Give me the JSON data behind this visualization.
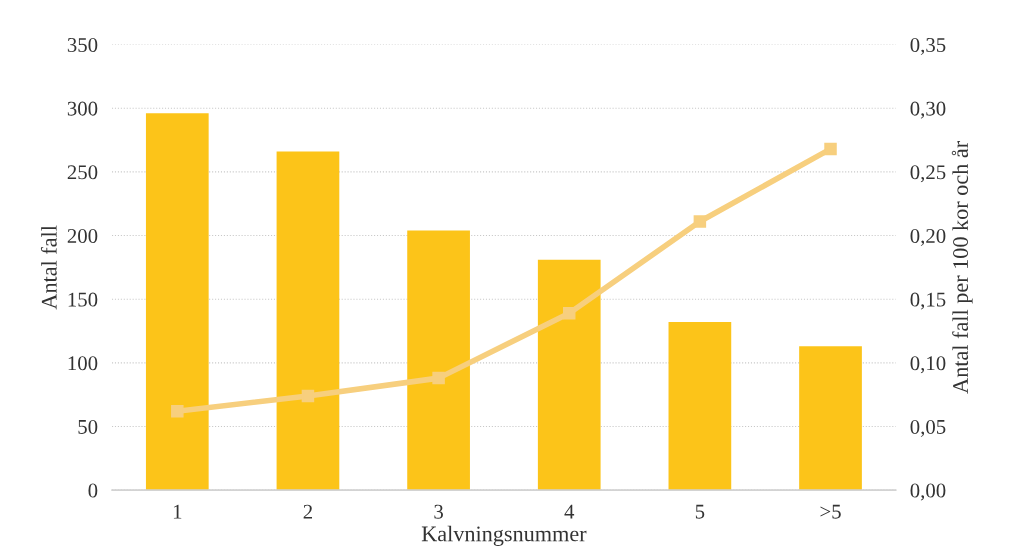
{
  "chart_data": {
    "type": "bar",
    "xlabel": "Kalvningsnummer",
    "ylabel": "Antal fall",
    "y2label": "Antal fall per 100 kor och år",
    "categories": [
      "1",
      "2",
      "3",
      "4",
      "5",
      ">5"
    ],
    "series": [
      {
        "color": "#fcc419",
        "values": [
          296,
          266,
          204,
          181,
          132,
          113
        ]
      },
      {
        "type": "line",
        "axis": "y2",
        "color": "#f7cf7e",
        "marker": "square",
        "values": [
          0.062,
          0.074,
          0.088,
          0.139,
          0.211,
          0.268
        ]
      }
    ],
    "ylim": [
      0,
      350
    ],
    "yticks": [
      0,
      50,
      100,
      150,
      200,
      250,
      300,
      350
    ],
    "y2lim": [
      0,
      0.35
    ],
    "y2ticks": [
      {
        "value": 0,
        "label": "0,00"
      },
      {
        "value": 0.05,
        "label": "0,05"
      },
      {
        "value": 0.1,
        "label": "0,10"
      },
      {
        "value": 0.15,
        "label": "0,15"
      },
      {
        "value": 0.2,
        "label": "0,20"
      },
      {
        "value": 0.25,
        "label": "0,25"
      },
      {
        "value": 0.3,
        "label": "0,30"
      },
      {
        "value": 0.35,
        "label": "0,35"
      }
    ],
    "grid": "y"
  }
}
